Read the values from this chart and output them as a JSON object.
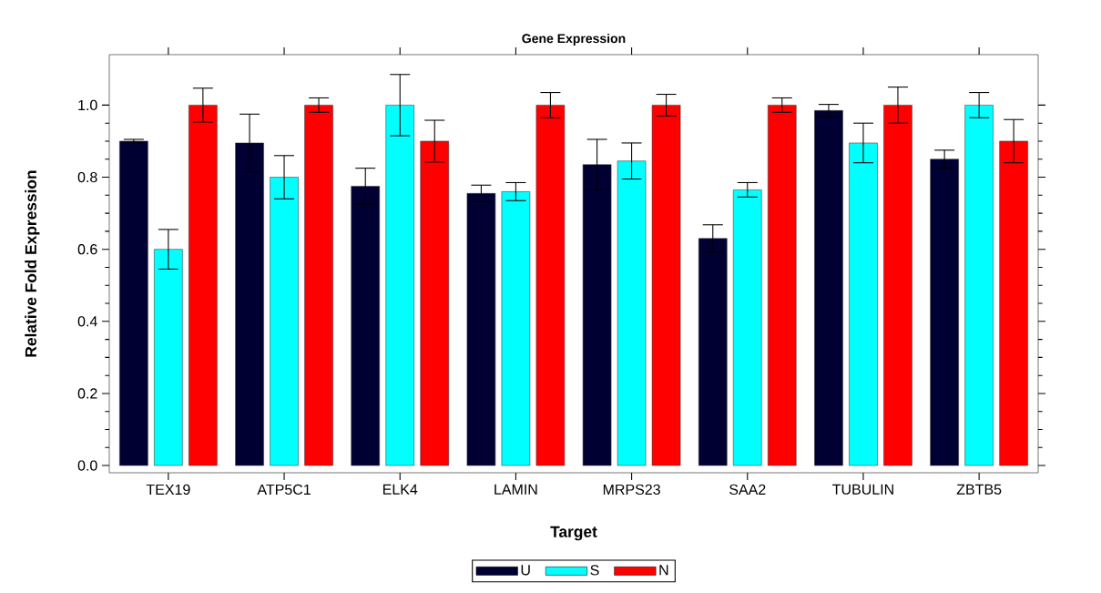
{
  "chart_data": {
    "type": "bar",
    "title": "Gene Expression",
    "xlabel": "Target",
    "ylabel": "Relative Fold Expression",
    "categories": [
      "TEX19",
      "ATP5C1",
      "ELK4",
      "LAMIN",
      "MRPS23",
      "SAA2",
      "TUBULIN",
      "ZBTB5"
    ],
    "series": [
      {
        "name": "U",
        "color": "#000033",
        "values": [
          0.9,
          0.895,
          0.775,
          0.755,
          0.835,
          0.63,
          0.985,
          0.85
        ],
        "errors": [
          0.005,
          0.08,
          0.05,
          0.023,
          0.07,
          0.038,
          0.017,
          0.025
        ]
      },
      {
        "name": "S",
        "color": "#00ffff",
        "values": [
          0.6,
          0.8,
          1.0,
          0.76,
          0.845,
          0.765,
          0.895,
          1.0
        ],
        "errors": [
          0.055,
          0.06,
          0.085,
          0.025,
          0.05,
          0.02,
          0.055,
          0.035
        ]
      },
      {
        "name": "N",
        "color": "#ff0000",
        "values": [
          1.0,
          1.0,
          0.9,
          1.0,
          1.0,
          1.0,
          1.0,
          0.9
        ],
        "errors": [
          0.047,
          0.02,
          0.058,
          0.035,
          0.03,
          0.02,
          0.05,
          0.06
        ]
      }
    ],
    "ylim": [
      -0.02,
      1.14
    ],
    "yticks": [
      {
        "value": 0,
        "label": "0.0"
      },
      {
        "value": 0.2,
        "label": "0.2"
      },
      {
        "value": 0.4,
        "label": "0.4"
      },
      {
        "value": 0.6,
        "label": "0.6"
      },
      {
        "value": 0.8,
        "label": "0.8"
      },
      {
        "value": 1.0,
        "label": "1.0"
      }
    ],
    "grid": false,
    "legend": "bottom"
  }
}
